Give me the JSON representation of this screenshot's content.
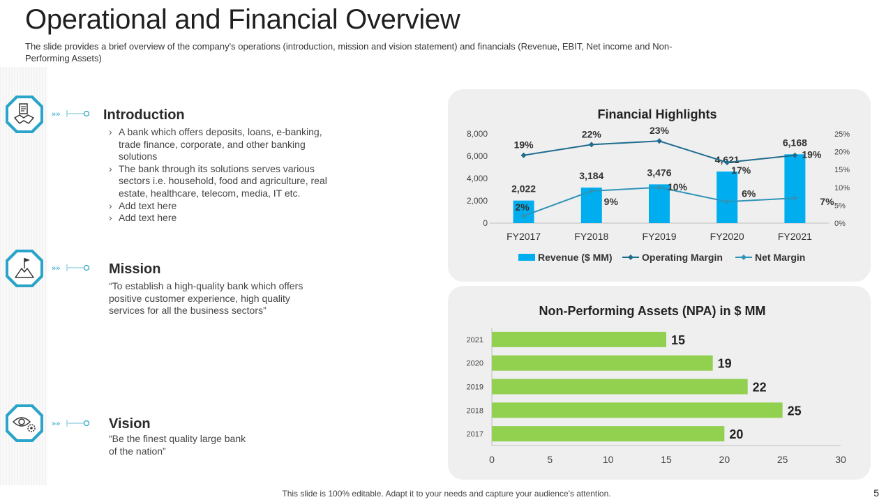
{
  "header": {
    "title": "Operational and Financial Overview",
    "subtitle": "The slide provides a brief overview of the company's operations (introduction, mission and vision statement) and financials (Revenue, EBIT, Net income and Non-Performing Assets)"
  },
  "introduction": {
    "heading": "Introduction",
    "bullets": [
      "A bank which offers deposits, loans, e-banking, trade finance, corporate, and other banking solutions",
      "The bank through its solutions serves various sectors i.e. household, food and agriculture, real estate, healthcare, telecom, media, IT etc.",
      "Add text here",
      "Add text here"
    ]
  },
  "mission": {
    "heading": "Mission",
    "text": "“To establish a high-quality bank which offers positive customer experience, high quality services for all the business sectors”"
  },
  "vision": {
    "heading": "Vision",
    "text": "“Be the finest quality large bank of the nation”"
  },
  "icons": {
    "accent": "#2aa4c8",
    "introduction": "handshake-document-icon",
    "mission": "mountain-flag-icon",
    "vision": "eye-gear-icon"
  },
  "footer": {
    "note": "This slide is 100% editable. Adapt it to your needs and capture your audience's attention.",
    "page": "5"
  },
  "chart_data": [
    {
      "type": "bar",
      "title": "Financial Highlights",
      "categories": [
        "FY2017",
        "FY2018",
        "FY2019",
        "FY2020",
        "FY2021"
      ],
      "series": [
        {
          "name": "Revenue ($ MM)",
          "kind": "bar",
          "axis": "left",
          "color": "#00aeef",
          "values": [
            2022,
            3184,
            3476,
            4621,
            6168
          ],
          "labels": [
            "2,022",
            "3,184",
            "3,476",
            "4,621",
            "6,168"
          ]
        },
        {
          "name": "Operating Margin",
          "kind": "line",
          "axis": "right",
          "color": "#1f6b8e",
          "values": [
            19,
            22,
            23,
            17,
            19
          ],
          "labels": [
            "19%",
            "22%",
            "23%",
            "17%",
            "19%"
          ]
        },
        {
          "name": "Net Margin",
          "kind": "line",
          "axis": "right",
          "color": "#2e94b8",
          "values": [
            2,
            9,
            10,
            6,
            7
          ],
          "labels": [
            "2%",
            "9%",
            "10%",
            "6%",
            "7%"
          ]
        }
      ],
      "ylim": [
        0,
        8000
      ],
      "yticks": [
        "0",
        "2,000",
        "4,000",
        "6,000",
        "8,000"
      ],
      "y2lim": [
        0,
        25
      ],
      "y2ticks": [
        "0%",
        "5%",
        "10%",
        "15%",
        "20%",
        "25%"
      ],
      "legend": "bottom"
    },
    {
      "type": "bar",
      "orientation": "horizontal",
      "title": "Non-Performing Assets (NPA) in $ MM",
      "categories": [
        "2021",
        "2020",
        "2019",
        "2018",
        "2017"
      ],
      "values": [
        15,
        19,
        22,
        25,
        20
      ],
      "labels": [
        "15",
        "19",
        "22",
        "25",
        "20"
      ],
      "color": "#92d050",
      "xlim": [
        0,
        30
      ],
      "xticks": [
        "0",
        "5",
        "10",
        "15",
        "20",
        "25",
        "30"
      ]
    }
  ]
}
